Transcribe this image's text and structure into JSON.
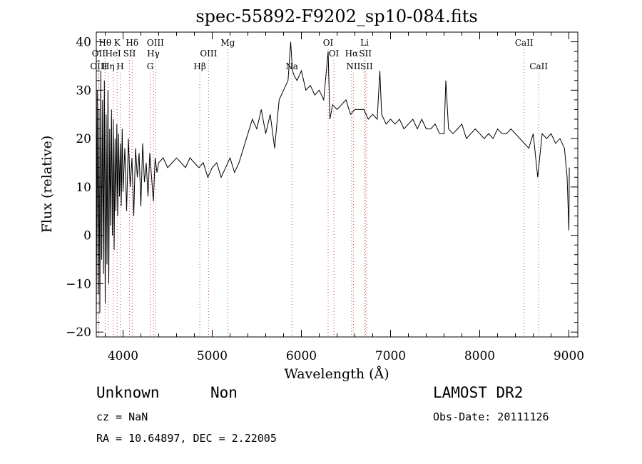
{
  "chart_data": {
    "type": "line",
    "title": "spec-55892-F9202_sp10-084.fits",
    "xlabel": "Wavelength (Å)",
    "ylabel": "Flux (relative)",
    "xlim": [
      3700,
      9100
    ],
    "ylim": [
      -21,
      42
    ],
    "xticks": [
      4000,
      5000,
      6000,
      7000,
      8000,
      9000
    ],
    "yticks": [
      -20,
      -10,
      0,
      10,
      20,
      30,
      40
    ],
    "grid": false,
    "line_color": "#000000",
    "marker_color": "#c0504d",
    "series": [
      {
        "x": [
          3700,
          3710,
          3720,
          3730,
          3740,
          3750,
          3760,
          3770,
          3780,
          3790,
          3800,
          3810,
          3820,
          3830,
          3840,
          3850,
          3860,
          3870,
          3880,
          3890,
          3900,
          3910,
          3920,
          3930,
          3940,
          3950,
          3960,
          3970,
          3980,
          3990,
          4000,
          4020,
          4040,
          4060,
          4080,
          4100,
          4120,
          4140,
          4160,
          4180,
          4200,
          4220,
          4240,
          4260,
          4280,
          4300,
          4320,
          4340,
          4360,
          4380,
          4400,
          4450,
          4500,
          4550,
          4600,
          4650,
          4700,
          4750,
          4800,
          4850,
          4900,
          4950,
          5000,
          5050,
          5100,
          5150,
          5200,
          5250,
          5300,
          5350,
          5400,
          5450,
          5500,
          5550,
          5600,
          5650,
          5700,
          5750,
          5800,
          5850,
          5880,
          5900,
          5920,
          5950,
          6000,
          6050,
          6100,
          6150,
          6200,
          6250,
          6300,
          6320,
          6350,
          6400,
          6450,
          6500,
          6550,
          6600,
          6650,
          6700,
          6750,
          6800,
          6850,
          6880,
          6900,
          6950,
          7000,
          7050,
          7100,
          7150,
          7200,
          7250,
          7300,
          7350,
          7400,
          7450,
          7500,
          7550,
          7600,
          7620,
          7650,
          7700,
          7750,
          7800,
          7850,
          7900,
          7950,
          8000,
          8050,
          8100,
          8150,
          8200,
          8250,
          8300,
          8350,
          8400,
          8450,
          8500,
          8550,
          8600,
          8650,
          8700,
          8750,
          8800,
          8850,
          8900,
          8950,
          8980,
          9000,
          9005
        ],
        "y": [
          -18,
          30,
          -12,
          26,
          -16,
          34,
          -5,
          28,
          -8,
          32,
          -14,
          25,
          -6,
          30,
          -10,
          22,
          2,
          26,
          0,
          24,
          -3,
          20,
          5,
          23,
          4,
          21,
          8,
          19,
          6,
          22,
          9,
          18,
          5,
          20,
          10,
          16,
          4,
          18,
          12,
          17,
          6,
          19,
          11,
          15,
          8,
          17,
          12,
          7,
          16,
          13,
          15,
          16,
          14,
          15,
          16,
          15,
          14,
          16,
          15,
          14,
          15,
          12,
          14,
          15,
          12,
          14,
          16,
          13,
          15,
          18,
          21,
          24,
          22,
          26,
          21,
          25,
          18,
          28,
          30,
          32,
          40,
          34,
          33,
          32,
          34,
          30,
          31,
          29,
          30,
          28,
          38,
          24,
          27,
          26,
          27,
          28,
          25,
          26,
          26,
          26,
          24,
          25,
          24,
          34,
          25,
          23,
          24,
          23,
          24,
          22,
          23,
          24,
          22,
          24,
          22,
          22,
          23,
          21,
          21,
          32,
          22,
          21,
          22,
          23,
          20,
          21,
          22,
          21,
          20,
          21,
          20,
          22,
          21,
          21,
          22,
          21,
          20,
          19,
          18,
          21,
          12,
          21,
          20,
          21,
          19,
          20,
          18,
          12,
          1,
          14
        ]
      }
    ],
    "line_markers": [
      {
        "label": "Hθ",
        "x": 3798,
        "row": 0
      },
      {
        "label": "K",
        "x": 3934,
        "row": 0
      },
      {
        "label": "Hδ",
        "x": 4102,
        "row": 0
      },
      {
        "label": "OIII",
        "x": 4363,
        "row": 0
      },
      {
        "label": "Mg",
        "x": 5175,
        "row": 0
      },
      {
        "label": "OI",
        "x": 6300,
        "row": 0
      },
      {
        "label": "Li",
        "x": 6708,
        "row": 0
      },
      {
        "label": "CaII",
        "x": 8498,
        "row": 0
      },
      {
        "label": "OII",
        "x": 3727,
        "row": 1
      },
      {
        "label": "HeI",
        "x": 3889,
        "row": 1
      },
      {
        "label": "SII",
        "x": 4072,
        "row": 1
      },
      {
        "label": "Hγ",
        "x": 4340,
        "row": 1
      },
      {
        "label": "OIII",
        "x": 4959,
        "row": 1
      },
      {
        "label": "OI",
        "x": 6364,
        "row": 1
      },
      {
        "label": "Hα",
        "x": 6563,
        "row": 1
      },
      {
        "label": "SII",
        "x": 6717,
        "row": 1
      },
      {
        "label": "OIII",
        "x": 3727,
        "row": 2
      },
      {
        "label": "Hη",
        "x": 3835,
        "row": 2
      },
      {
        "label": "H",
        "x": 3968,
        "row": 2
      },
      {
        "label": "G",
        "x": 4304,
        "row": 2
      },
      {
        "label": "Hβ",
        "x": 4861,
        "row": 2
      },
      {
        "label": "Na",
        "x": 5893,
        "row": 2
      },
      {
        "label": "NII",
        "x": 6583,
        "row": 2
      },
      {
        "label": "SII",
        "x": 6731,
        "row": 2
      },
      {
        "label": "CaII",
        "x": 8662,
        "row": 2
      }
    ]
  },
  "info": {
    "class_label": "Unknown",
    "subclass_label": "Non",
    "survey": "LAMOST DR2",
    "cz": "cz = NaN",
    "obs_date": "Obs-Date: 20111126",
    "coords": "RA =  10.64897, DEC =   2.22005"
  }
}
